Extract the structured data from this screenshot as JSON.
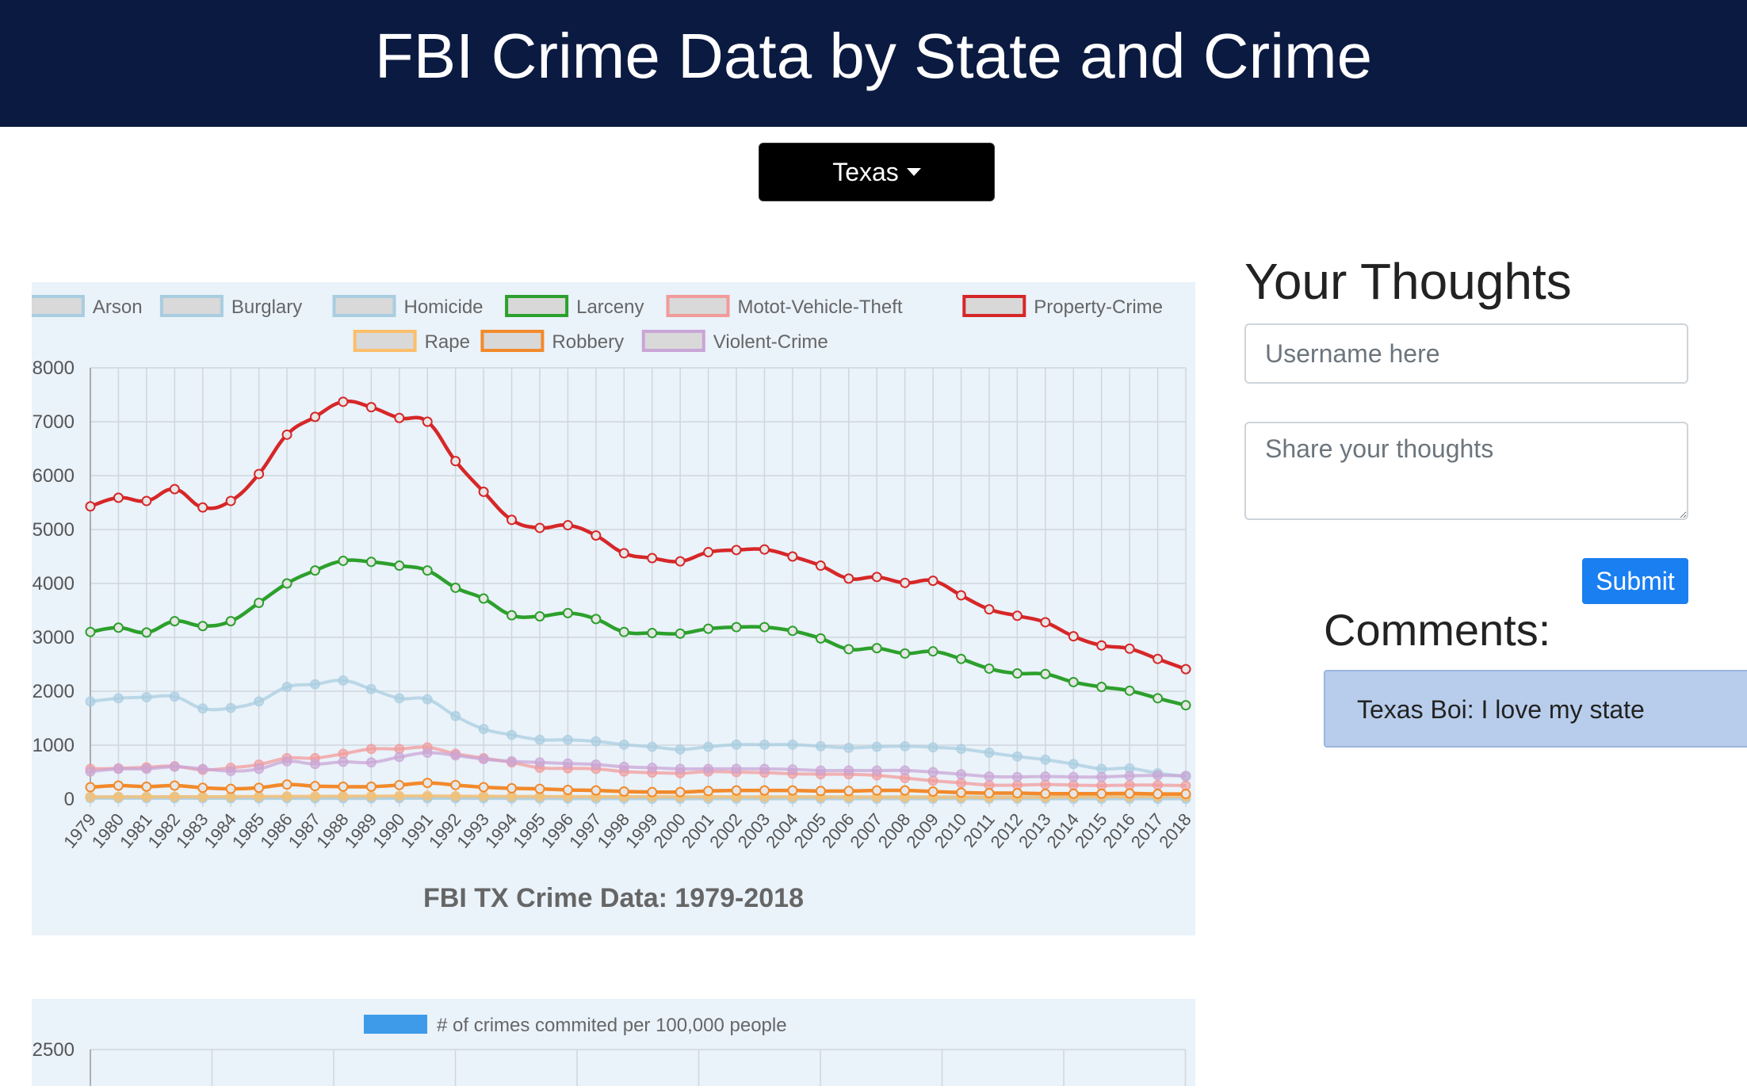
{
  "header": {
    "title": "FBI Crime Data by State and Crime"
  },
  "state_selector": {
    "label": "Texas"
  },
  "thoughts": {
    "title": "Your Thoughts",
    "username_placeholder": "Username here",
    "thoughts_placeholder": "Share your thoughts",
    "submit_label": "Submit"
  },
  "comments": {
    "title": "Comments:",
    "items": [
      {
        "text": "Texas Boi: I love my state"
      }
    ]
  },
  "chart_data": [
    {
      "type": "line",
      "title": "FBI TX Crime Data: 1979-2018",
      "x": [
        "1979",
        "1980",
        "1981",
        "1982",
        "1983",
        "1984",
        "1985",
        "1986",
        "1987",
        "1988",
        "1989",
        "1990",
        "1991",
        "1992",
        "1993",
        "1994",
        "1995",
        "1996",
        "1997",
        "1998",
        "1999",
        "2000",
        "2001",
        "2002",
        "2003",
        "2004",
        "2005",
        "2006",
        "2007",
        "2008",
        "2009",
        "2010",
        "2011",
        "2012",
        "2013",
        "2014",
        "2015",
        "2016",
        "2017",
        "2018"
      ],
      "ylim": [
        0,
        8000
      ],
      "yticks": [
        "0",
        "1000",
        "2000",
        "3000",
        "4000",
        "5000",
        "6000",
        "7000",
        "8000"
      ],
      "grid": true,
      "legend": "top",
      "series": [
        {
          "name": "Arson",
          "color": "#a9cde0",
          "hidden": true,
          "values": [
            40,
            40,
            40,
            40,
            40,
            40,
            40,
            40,
            40,
            40,
            40,
            40,
            40,
            40,
            40,
            40,
            40,
            40,
            40,
            40,
            40,
            40,
            40,
            40,
            40,
            40,
            40,
            40,
            40,
            40,
            40,
            40,
            40,
            40,
            40,
            40,
            40,
            40,
            40,
            40
          ]
        },
        {
          "name": "Burglary",
          "color": "#a9cde0",
          "hidden": true,
          "values": [
            1810,
            1870,
            1890,
            1900,
            1680,
            1690,
            1810,
            2080,
            2130,
            2200,
            2040,
            1870,
            1850,
            1540,
            1300,
            1190,
            1100,
            1100,
            1070,
            1010,
            970,
            920,
            970,
            1010,
            1010,
            1010,
            980,
            950,
            970,
            980,
            960,
            930,
            860,
            790,
            730,
            650,
            560,
            570,
            480,
            420
          ]
        },
        {
          "name": "Homicide",
          "color": "#a9cde0",
          "hidden": true,
          "values": [
            16,
            16,
            16,
            16,
            15,
            13,
            13,
            14,
            13,
            12,
            12,
            14,
            15,
            14,
            13,
            11,
            9,
            8,
            7,
            7,
            6,
            6,
            6,
            6,
            6,
            6,
            6,
            6,
            6,
            6,
            5,
            5,
            5,
            5,
            5,
            4,
            4,
            5,
            5,
            5
          ]
        },
        {
          "name": "Larceny",
          "color": "#2ca02c",
          "hidden": false,
          "values": [
            3100,
            3180,
            3090,
            3300,
            3210,
            3300,
            3640,
            4000,
            4240,
            4420,
            4400,
            4330,
            4240,
            3920,
            3720,
            3410,
            3390,
            3450,
            3340,
            3100,
            3080,
            3070,
            3160,
            3190,
            3190,
            3120,
            2980,
            2780,
            2800,
            2700,
            2740,
            2600,
            2420,
            2330,
            2320,
            2170,
            2080,
            2010,
            1870,
            1740
          ]
        },
        {
          "name": "Motot-Vehicle-Theft",
          "color": "#f29b9b",
          "hidden": true,
          "values": [
            560,
            570,
            590,
            610,
            540,
            580,
            640,
            760,
            760,
            840,
            930,
            930,
            960,
            840,
            760,
            680,
            580,
            570,
            560,
            510,
            490,
            480,
            510,
            500,
            490,
            470,
            460,
            460,
            440,
            390,
            340,
            300,
            260,
            260,
            270,
            260,
            250,
            260,
            260,
            250
          ]
        },
        {
          "name": "Property-Crime",
          "color": "#d62728",
          "hidden": false,
          "values": [
            5430,
            5590,
            5530,
            5750,
            5410,
            5530,
            6030,
            6760,
            7090,
            7370,
            7270,
            7070,
            7000,
            6270,
            5700,
            5180,
            5030,
            5080,
            4890,
            4560,
            4470,
            4410,
            4580,
            4620,
            4630,
            4500,
            4330,
            4090,
            4120,
            4010,
            4050,
            3780,
            3520,
            3400,
            3280,
            3020,
            2850,
            2790,
            2600,
            2410
          ]
        },
        {
          "name": "Rape",
          "color": "#fbbf6b",
          "hidden": true,
          "values": [
            40,
            42,
            43,
            45,
            43,
            46,
            48,
            50,
            52,
            54,
            56,
            58,
            60,
            55,
            53,
            50,
            48,
            46,
            45,
            44,
            43,
            42,
            42,
            42,
            40,
            40,
            40,
            38,
            37,
            37,
            35,
            33,
            31,
            32,
            35,
            40,
            42,
            45,
            47,
            48
          ]
        },
        {
          "name": "Robbery",
          "color": "#f28a2b",
          "hidden": false,
          "values": [
            220,
            250,
            230,
            250,
            210,
            190,
            210,
            270,
            240,
            230,
            230,
            260,
            300,
            260,
            220,
            200,
            190,
            170,
            160,
            140,
            130,
            130,
            150,
            160,
            160,
            160,
            150,
            150,
            160,
            160,
            140,
            120,
            110,
            110,
            100,
            100,
            100,
            105,
            95,
            95
          ]
        },
        {
          "name": "Violent-Crime",
          "color": "#c9a6d6",
          "hidden": true,
          "values": [
            510,
            560,
            560,
            600,
            560,
            520,
            560,
            700,
            650,
            690,
            680,
            780,
            860,
            810,
            740,
            700,
            680,
            660,
            640,
            600,
            580,
            560,
            560,
            560,
            560,
            550,
            530,
            530,
            530,
            530,
            500,
            460,
            420,
            410,
            420,
            410,
            410,
            430,
            440,
            430
          ]
        }
      ]
    },
    {
      "type": "bar",
      "title": "",
      "yticks": [
        "2500"
      ],
      "grid": true,
      "legend": "top",
      "series": [
        {
          "name": "# of crimes commited per 100,000 people",
          "color": "#3d9be9"
        }
      ]
    }
  ]
}
